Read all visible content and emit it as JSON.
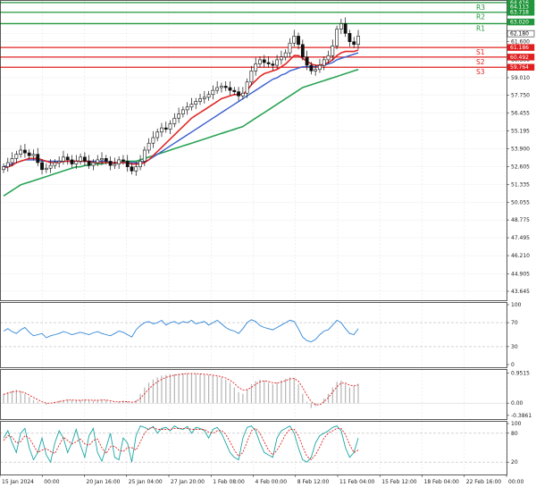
{
  "chart_data": {
    "type": "candlestick",
    "main": {
      "y_axis": {
        "range": [
          43.0,
          64.6
        ],
        "ticks": [
          "64.416",
          "63.718",
          "62.180",
          "61.600",
          "60.300",
          "59.010",
          "57.750",
          "56.455",
          "55.195",
          "53.900",
          "52.605",
          "51.335",
          "50.055",
          "48.775",
          "47.495",
          "46.210",
          "44.905",
          "43.645"
        ]
      },
      "x_axis": {
        "ticks": [
          "15 Jan 2024",
          "00:00",
          "20 Jan 16:00",
          "25 Jan 04:00",
          "27 Jan 20:00",
          "1 Feb 08:00",
          "4 Feb 00:00",
          "8 Feb 12:00",
          "11 Feb 04:00",
          "15 Feb 12:00",
          "18 Feb 04:00",
          "22 Feb 16:00",
          "00:00"
        ]
      },
      "levels": [
        {
          "name": "R3",
          "value": 64.416,
          "color": "#22963c"
        },
        {
          "name": "R2",
          "value": 63.718,
          "color": "#22963c"
        },
        {
          "name": "R1",
          "value": 62.9,
          "color": "#22963c"
        },
        {
          "name": "S1",
          "value": 61.186,
          "color": "#e02020"
        },
        {
          "name": "S2",
          "value": 60.492,
          "color": "#e02020"
        },
        {
          "name": "S3",
          "value": 59.764,
          "color": "#e02020"
        }
      ],
      "price_labels": [
        {
          "text": "64.416",
          "value": 64.416,
          "color": "#22963c"
        },
        {
          "text": "64.113",
          "value": 64.113,
          "color": "#22963c"
        },
        {
          "text": "63.718",
          "value": 63.718,
          "color": "#22963c"
        },
        {
          "text": "63.020",
          "value": 63.02,
          "color": "#22963c"
        },
        {
          "text": "62.180",
          "value": 62.18,
          "color": "#000000"
        },
        {
          "text": "61.186",
          "value": 61.186,
          "color": "#e02020"
        },
        {
          "text": "60.492",
          "value": 60.492,
          "color": "#e02020"
        },
        {
          "text": "59.764",
          "value": 59.764,
          "color": "#e02020"
        }
      ],
      "close_series": [
        52.6,
        52.9,
        53.2,
        53.5,
        53.8,
        53.6,
        53.4,
        53.5,
        52.9,
        52.4,
        52.5,
        52.7,
        52.9,
        53.0,
        53.3,
        53.1,
        52.8,
        53.0,
        53.3,
        53.0,
        52.7,
        52.9,
        53.1,
        53.2,
        53.0,
        52.7,
        52.8,
        53.1,
        53.0,
        52.6,
        52.3,
        52.6,
        53.0,
        53.8,
        54.3,
        54.7,
        55.1,
        55.4,
        55.3,
        55.7,
        56.1,
        56.4,
        56.7,
        56.9,
        57.1,
        57.3,
        57.5,
        57.6,
        57.8,
        58.1,
        58.3,
        58.4,
        58.3,
        58.1,
        58.0,
        57.7,
        57.9,
        58.7,
        59.5,
        60.0,
        60.3,
        60.1,
        60.0,
        59.9,
        60.3,
        60.5,
        60.8,
        61.5,
        62.0,
        61.4,
        60.5,
        59.9,
        59.5,
        59.6,
        59.9,
        60.3,
        60.6,
        61.3,
        62.5,
        62.9,
        62.2,
        61.6,
        61.4,
        62.0
      ],
      "ma_fast_red": [
        52.5,
        52.6,
        52.7,
        52.9,
        53.0,
        53.1,
        53.2,
        53.2,
        53.2,
        53.1,
        53.0,
        52.9,
        52.9,
        52.9,
        53.0,
        53.0,
        53.0,
        53.0,
        53.0,
        53.0,
        53.0,
        52.9,
        52.9,
        52.9,
        52.9,
        52.9,
        52.9,
        52.9,
        52.9,
        52.9,
        52.8,
        52.8,
        52.8,
        52.9,
        53.1,
        53.4,
        53.7,
        54.0,
        54.3,
        54.6,
        54.9,
        55.2,
        55.5,
        55.8,
        56.1,
        56.3,
        56.5,
        56.7,
        56.9,
        57.1,
        57.3,
        57.5,
        57.6,
        57.7,
        57.8,
        57.8,
        57.8,
        58.1,
        58.5,
        58.8,
        59.1,
        59.3,
        59.4,
        59.5,
        59.6,
        59.8,
        60.0,
        60.3,
        60.6,
        60.6,
        60.4,
        60.2,
        60.0,
        59.9,
        59.9,
        60.0,
        60.1,
        60.3,
        60.6,
        60.8,
        60.9,
        60.9,
        60.9,
        61.0
      ],
      "ma_mid_blue": [
        52.6,
        52.7,
        52.8,
        52.9,
        53.0,
        53.1,
        53.1,
        53.1,
        53.1,
        53.0,
        53.0,
        53.0,
        53.0,
        53.0,
        53.0,
        53.0,
        53.0,
        53.0,
        53.0,
        53.0,
        53.0,
        53.0,
        53.0,
        53.0,
        53.0,
        52.9,
        52.9,
        52.9,
        52.9,
        52.9,
        52.9,
        52.9,
        52.9,
        53.0,
        53.1,
        53.3,
        53.5,
        53.7,
        53.9,
        54.1,
        54.3,
        54.5,
        54.7,
        54.9,
        55.1,
        55.3,
        55.5,
        55.7,
        55.9,
        56.1,
        56.3,
        56.5,
        56.7,
        56.9,
        57.1,
        57.3,
        57.5,
        57.7,
        57.9,
        58.1,
        58.3,
        58.5,
        58.7,
        58.9,
        59.0,
        59.2,
        59.3,
        59.5,
        59.6,
        59.7,
        59.8,
        59.8,
        59.8,
        59.8,
        59.9,
        59.9,
        60.0,
        60.1,
        60.3,
        60.4,
        60.5,
        60.6,
        60.7,
        60.8
      ],
      "ma_slow_green": [
        50.5,
        50.7,
        50.9,
        51.1,
        51.3,
        51.4,
        51.5,
        51.6,
        51.7,
        51.8,
        51.9,
        52.0,
        52.1,
        52.2,
        52.3,
        52.4,
        52.5,
        52.6,
        52.6,
        52.7,
        52.7,
        52.8,
        52.8,
        52.8,
        52.9,
        52.9,
        52.9,
        52.9,
        53.0,
        53.0,
        53.0,
        53.0,
        53.1,
        53.2,
        53.3,
        53.4,
        53.5,
        53.6,
        53.7,
        53.8,
        53.9,
        54.0,
        54.1,
        54.2,
        54.3,
        54.4,
        54.5,
        54.6,
        54.7,
        54.8,
        54.9,
        55.0,
        55.1,
        55.2,
        55.3,
        55.4,
        55.5,
        55.7,
        55.9,
        56.1,
        56.3,
        56.5,
        56.7,
        56.9,
        57.1,
        57.3,
        57.5,
        57.7,
        57.9,
        58.1,
        58.3,
        58.4,
        58.5,
        58.6,
        58.7,
        58.8,
        58.9,
        59.0,
        59.1,
        59.2,
        59.3,
        59.4,
        59.5,
        59.6
      ]
    },
    "rsi": {
      "y_ticks": [
        "100",
        "70",
        "30",
        "0"
      ],
      "range": [
        0,
        100
      ],
      "levels": [
        70,
        30
      ],
      "values": [
        56,
        60,
        55,
        52,
        58,
        62,
        54,
        48,
        50,
        52,
        45,
        48,
        50,
        52,
        55,
        53,
        50,
        52,
        54,
        52,
        50,
        53,
        55,
        52,
        50,
        48,
        52,
        56,
        54,
        50,
        46,
        58,
        65,
        70,
        72,
        68,
        70,
        74,
        66,
        70,
        72,
        68,
        72,
        70,
        74,
        68,
        70,
        72,
        66,
        70,
        74,
        68,
        62,
        58,
        56,
        52,
        60,
        70,
        75,
        72,
        65,
        62,
        60,
        58,
        62,
        66,
        70,
        74,
        72,
        60,
        46,
        40,
        38,
        42,
        50,
        56,
        58,
        66,
        74,
        70,
        60,
        52,
        50,
        60
      ]
    },
    "osc_histogram": {
      "y_ticks": [
        "0.9515",
        "0.00",
        "-0.3861"
      ],
      "range": [
        -0.42,
        1.0
      ],
      "values": [
        0.3,
        0.35,
        0.4,
        0.42,
        0.38,
        0.3,
        0.2,
        0.1,
        0.05,
        0.0,
        -0.05,
        0.0,
        0.05,
        0.08,
        0.1,
        0.12,
        0.1,
        0.08,
        0.1,
        0.12,
        0.1,
        0.08,
        0.1,
        0.12,
        0.1,
        0.05,
        0.02,
        0.05,
        0.08,
        0.05,
        0.0,
        0.1,
        0.3,
        0.5,
        0.65,
        0.75,
        0.82,
        0.88,
        0.9,
        0.92,
        0.93,
        0.94,
        0.95,
        0.95,
        0.95,
        0.94,
        0.93,
        0.92,
        0.9,
        0.88,
        0.85,
        0.82,
        0.75,
        0.65,
        0.5,
        0.35,
        0.3,
        0.45,
        0.6,
        0.7,
        0.75,
        0.72,
        0.65,
        0.6,
        0.65,
        0.72,
        0.78,
        0.82,
        0.8,
        0.6,
        0.3,
        0.05,
        -0.15,
        -0.1,
        0.0,
        0.15,
        0.3,
        0.5,
        0.68,
        0.72,
        0.62,
        0.5,
        0.55,
        0.62
      ],
      "signal": [
        0.28,
        0.32,
        0.36,
        0.38,
        0.37,
        0.33,
        0.26,
        0.18,
        0.11,
        0.05,
        0.0,
        0.0,
        0.02,
        0.05,
        0.08,
        0.1,
        0.1,
        0.09,
        0.09,
        0.1,
        0.1,
        0.09,
        0.09,
        0.1,
        0.1,
        0.08,
        0.05,
        0.04,
        0.05,
        0.05,
        0.03,
        0.05,
        0.15,
        0.3,
        0.45,
        0.58,
        0.68,
        0.76,
        0.82,
        0.86,
        0.89,
        0.91,
        0.93,
        0.94,
        0.94,
        0.94,
        0.93,
        0.92,
        0.91,
        0.89,
        0.87,
        0.84,
        0.8,
        0.73,
        0.63,
        0.5,
        0.42,
        0.43,
        0.5,
        0.6,
        0.68,
        0.71,
        0.69,
        0.65,
        0.64,
        0.67,
        0.72,
        0.77,
        0.79,
        0.7,
        0.5,
        0.25,
        0.05,
        -0.05,
        -0.05,
        0.05,
        0.18,
        0.35,
        0.52,
        0.64,
        0.64,
        0.57,
        0.55,
        0.58
      ]
    },
    "stochastic": {
      "y_ticks": [
        "100",
        "80",
        "20"
      ],
      "range": [
        0,
        100
      ],
      "levels": [
        80,
        20
      ],
      "k": [
        70,
        85,
        60,
        40,
        80,
        90,
        50,
        25,
        40,
        70,
        35,
        20,
        60,
        85,
        70,
        40,
        60,
        88,
        55,
        30,
        75,
        90,
        40,
        22,
        50,
        80,
        30,
        25,
        70,
        60,
        20,
        75,
        95,
        92,
        88,
        94,
        80,
        90,
        92,
        85,
        95,
        90,
        88,
        94,
        80,
        92,
        90,
        85,
        70,
        88,
        92,
        80,
        60,
        40,
        30,
        25,
        70,
        92,
        95,
        85,
        60,
        40,
        35,
        30,
        70,
        85,
        90,
        95,
        80,
        50,
        25,
        20,
        30,
        60,
        75,
        80,
        85,
        92,
        95,
        85,
        50,
        30,
        40,
        70
      ],
      "d": [
        65,
        75,
        72,
        60,
        62,
        75,
        70,
        55,
        40,
        45,
        48,
        42,
        38,
        55,
        72,
        65,
        58,
        62,
        68,
        58,
        55,
        65,
        68,
        50,
        38,
        52,
        53,
        45,
        42,
        50,
        50,
        45,
        62,
        80,
        90,
        92,
        88,
        88,
        88,
        88,
        90,
        90,
        90,
        90,
        88,
        88,
        88,
        88,
        82,
        80,
        85,
        86,
        78,
        62,
        45,
        32,
        40,
        62,
        85,
        90,
        80,
        62,
        45,
        35,
        45,
        60,
        78,
        88,
        88,
        75,
        52,
        32,
        25,
        35,
        52,
        70,
        80,
        85,
        90,
        90,
        77,
        56,
        40,
        45
      ]
    }
  }
}
